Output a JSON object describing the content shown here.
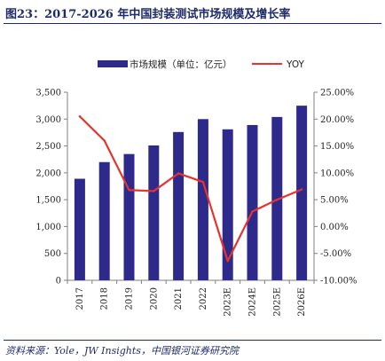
{
  "title": "图23：2017-2026 年中国封装测试市场规模及增长率",
  "source": "资料来源：Yole，JW Insights，中国银河证券研究院",
  "colors": {
    "bar": "#2e2a8c",
    "line": "#e8322c",
    "axis": "#7f7f7f"
  },
  "chart_data": {
    "type": "bar",
    "categories": [
      "2017",
      "2018",
      "2019",
      "2020",
      "2021",
      "2022",
      "2023E",
      "2024E",
      "2025E",
      "2026E"
    ],
    "series": [
      {
        "name": "市场规模（单位：亿元）",
        "type": "bar",
        "axis": "left",
        "values": [
          1890,
          2200,
          2350,
          2510,
          2760,
          3000,
          2810,
          2890,
          3040,
          3250
        ]
      },
      {
        "name": "YOY",
        "type": "line",
        "axis": "right",
        "values": [
          20.5,
          16.0,
          6.8,
          6.6,
          9.9,
          8.3,
          -6.4,
          2.8,
          5.0,
          6.9
        ]
      }
    ],
    "y_left": {
      "min": 0,
      "max": 3500,
      "ticks": [
        "0",
        "500",
        "1,000",
        "1,500",
        "2,000",
        "2,500",
        "3,000",
        "3,500"
      ]
    },
    "y_right": {
      "min": -10,
      "max": 25,
      "ticks": [
        "-10.00%",
        "-5.00%",
        "0.00%",
        "5.00%",
        "10.00%",
        "15.00%",
        "20.00%",
        "25.00%"
      ]
    },
    "legend_position": "top"
  }
}
